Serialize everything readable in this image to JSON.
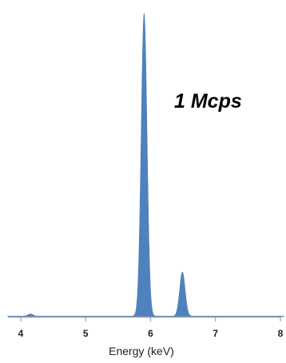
{
  "chart_data": {
    "type": "area",
    "title": "",
    "xlabel": "Energy (keV)",
    "ylabel": "",
    "xlim": [
      3.8,
      8.05
    ],
    "ylim": [
      0,
      1
    ],
    "xticks": [
      "4",
      "5",
      "6",
      "7",
      "8"
    ],
    "grid": false,
    "legend": "none",
    "annotation": "1 Mcps",
    "series": [
      {
        "color": "#4f81bd",
        "peaks": [
          {
            "center": 5.9,
            "height": 0.98,
            "sigma": 0.045
          },
          {
            "center": 6.49,
            "height": 0.143,
            "sigma": 0.042
          },
          {
            "center": 4.15,
            "height": 0.007,
            "sigma": 0.04
          }
        ],
        "baseline": 0.002
      }
    ]
  }
}
